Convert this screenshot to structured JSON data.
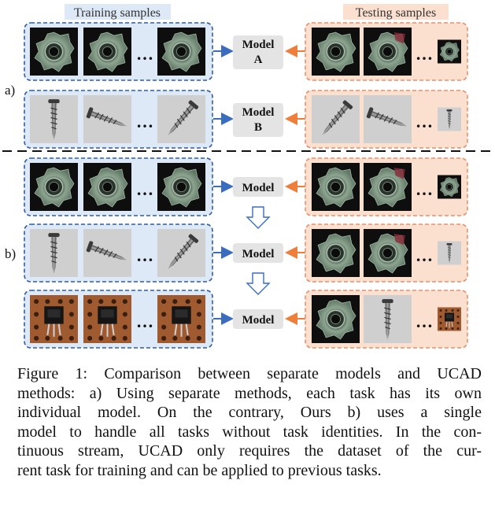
{
  "header": {
    "training_label": "Training samples",
    "testing_label": "Testing samples"
  },
  "part_labels": {
    "a": "a)",
    "b": "b)"
  },
  "models": {
    "a_top": [
      "Model",
      "A"
    ],
    "a_bottom": [
      "Model",
      "B"
    ],
    "b_generic": "Model"
  },
  "ellipsis": "…",
  "caption_lines": [
    "Figure 1: Comparison between separate models and UCAD",
    "methods: a) Using separate methods, each task has its own",
    "individual model. On the contrary, Ours b) uses a single",
    "model to handle all tasks without task identities. In the con-",
    "tinuous stream, UCAD only requires the dataset of the cur-",
    "rent task for training and can be applied to previous tasks."
  ],
  "colors": {
    "train_bg": "#dde9f6",
    "train_border": "#2f5da8",
    "test_bg": "#fbe0d0",
    "test_border": "#e8906a",
    "arrow_blue": "#3a6cc0",
    "arrow_orange": "#ef7e3a",
    "model_bg": "#e4e4e4"
  }
}
